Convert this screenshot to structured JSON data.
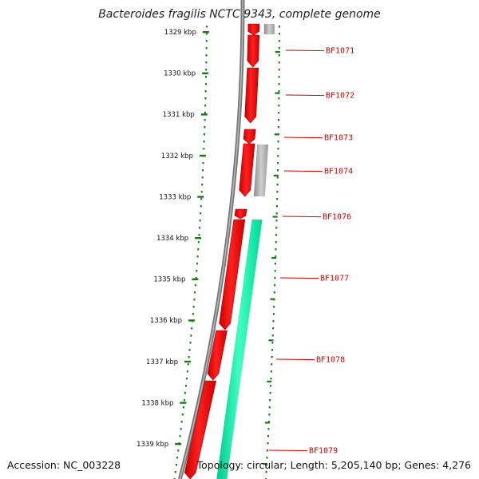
{
  "title": "Bacteroides fragilis NCTC 9343, complete genome",
  "footer": {
    "accession": "Accession: NC_003228",
    "summary": "Topology: circular; Length: 5,205,140 bp; Genes: 4,276"
  },
  "colors": {
    "forward_gene": "#ff0000",
    "forward_gene_dark": "#b20000",
    "other_gene": "#a0a0a0",
    "reverse_gene": "#00f0a0",
    "label_line": "#cc0000",
    "label_text": "#cc0000",
    "ruler": "#1a7a1a",
    "backbone": "#888888"
  },
  "ruler_labels": [
    "1329 kbp",
    "1330 kbp",
    "1331 kbp",
    "1332 kbp",
    "1333 kbp",
    "1334 kbp",
    "1335 kbp",
    "1336 kbp",
    "1337 kbp",
    "1338 kbp",
    "1339 kbp"
  ],
  "gene_labels": [
    "BF1071",
    "BF1072",
    "BF1073",
    "BF1074",
    "BF1076",
    "BF1077",
    "BF1078",
    "BF1079"
  ]
}
